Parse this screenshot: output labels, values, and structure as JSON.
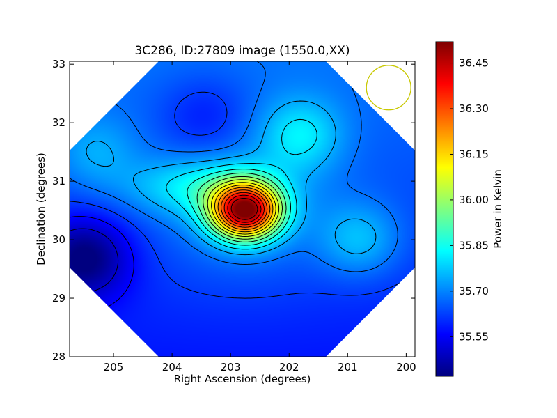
{
  "chart_data": {
    "type": "heatmap",
    "title": "3C286, ID:27809 image (1550.0,XX)",
    "xlabel": "Right Ascension (degrees)",
    "ylabel": "Declination (degrees)",
    "xlim": [
      205.75,
      199.85
    ],
    "ylim": [
      28,
      33.05
    ],
    "x_ticks": [
      "205",
      "204",
      "203",
      "202",
      "201",
      "200"
    ],
    "x_tick_values": [
      205,
      204,
      203,
      202,
      201,
      200
    ],
    "y_ticks": [
      "28",
      "29",
      "30",
      "31",
      "32",
      "33"
    ],
    "y_tick_values": [
      28,
      29,
      30,
      31,
      32,
      33
    ],
    "colorbar": {
      "label": "Power in Kelvin",
      "range": [
        35.42,
        36.52
      ],
      "ticks": [
        "35.55",
        "35.70",
        "35.85",
        "36.00",
        "36.15",
        "36.30",
        "36.45"
      ],
      "tick_values": [
        35.55,
        35.7,
        35.85,
        36.0,
        36.15,
        36.3,
        36.45
      ],
      "colormap": "jet"
    },
    "peak": {
      "ra": 202.75,
      "dec": 30.5,
      "value": 36.52
    },
    "features": [
      {
        "kind": "peak",
        "ra": 202.75,
        "dec": 30.5,
        "value": 36.52
      },
      {
        "kind": "ridge",
        "ra": 203.6,
        "dec": 30.9,
        "value": 35.78
      },
      {
        "kind": "warm_spot",
        "ra": 201.8,
        "dec": 31.8,
        "value": 35.78
      },
      {
        "kind": "warm_spot",
        "ra": 200.8,
        "dec": 30.0,
        "value": 35.76
      },
      {
        "kind": "warm_spot",
        "ra": 205.3,
        "dec": 31.5,
        "value": 35.72
      },
      {
        "kind": "cold_spot",
        "ra": 205.5,
        "dec": 29.7,
        "value": 35.42
      },
      {
        "kind": "cold_spot",
        "ra": 203.45,
        "dec": 32.1,
        "value": 35.55
      }
    ],
    "background_value": 35.63,
    "beam_marker": {
      "ra": 200.3,
      "dec": 32.6,
      "radius_deg": 0.38,
      "color": "#c8c800"
    },
    "grid": false
  }
}
